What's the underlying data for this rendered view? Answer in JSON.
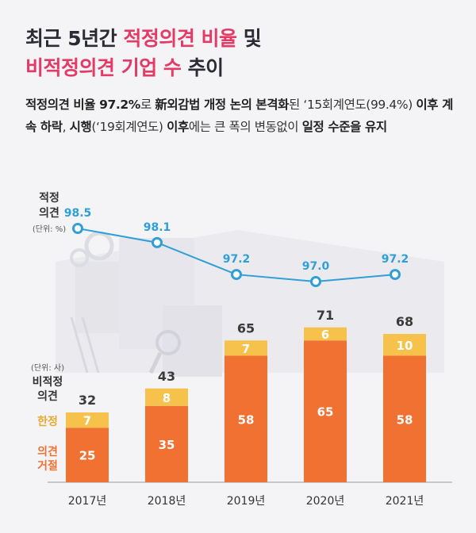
{
  "header": {
    "title_line1_plain": "최근 5년간 ",
    "title_line1_accent": "적정의견 비율",
    "title_line1_tail": " 및",
    "title_line2_accent": "비적정의견 기업 수",
    "title_line2_tail": " 추이"
  },
  "description": {
    "s1_bold": "적정의견 비율 97.2%",
    "s2": "로 ",
    "s3_bold": "新외감법 개정 논의 본격화",
    "s4": "된 ‘15회계연도(99.4%) ",
    "s5_bold": "이후 계속 하락",
    "s6": ", ",
    "s7_bold": "시행",
    "s8": "(‘19회계연도) ",
    "s9_bold": "이후",
    "s10": "에는 큰 폭의 변동없이 ",
    "s11_bold": "일정 수준을 유지"
  },
  "colors": {
    "line": "#2f9fd6",
    "rejected": "#f07132",
    "qualified": "#f6c24c",
    "accent": "#e33a66",
    "text": "#333333"
  },
  "chart_data": {
    "type": "bar",
    "categories": [
      "2017년",
      "2018년",
      "2019년",
      "2020년",
      "2021년"
    ],
    "line_series": {
      "label_line1": "적정",
      "label_line2": "의견",
      "unit": "(단위: %)",
      "values": [
        98.5,
        98.1,
        97.2,
        97.0,
        97.2
      ]
    },
    "bar_axis": {
      "unit": "(단위: 사)",
      "label_line1": "비적정",
      "label_line2": "의견"
    },
    "series": [
      {
        "name": "의견거절",
        "name_line1": "의견",
        "name_line2": "거절",
        "values": [
          25,
          35,
          58,
          65,
          58
        ]
      },
      {
        "name": "한정",
        "values": [
          7,
          8,
          7,
          6,
          10
        ]
      }
    ],
    "totals": [
      32,
      43,
      65,
      71,
      68
    ]
  }
}
